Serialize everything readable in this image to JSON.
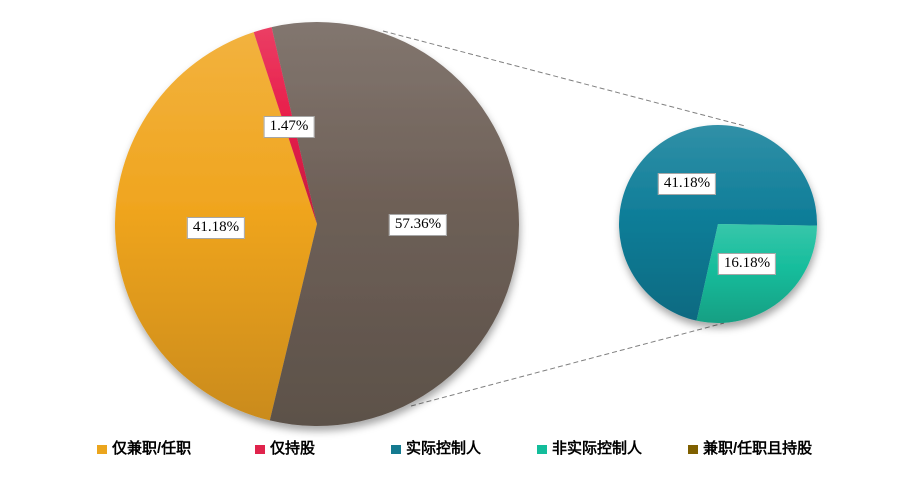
{
  "chart_data": {
    "type": "pie",
    "variant": "pie-of-pie",
    "title": "",
    "legend_position": "bottom",
    "connector_color": "#808080",
    "main_pie": {
      "rotation_deg": 193.5,
      "slices": [
        {
          "name": "仅兼职/任职",
          "value": 41.18,
          "label": "41.18%",
          "color": "#F0A51F"
        },
        {
          "name": "仅持股",
          "value": 1.47,
          "label": "1.47%",
          "color": "#E81F4B"
        },
        {
          "name": "兼职/任职且持股",
          "value": 57.36,
          "label": "57.36%",
          "color": "#6E6057"
        }
      ]
    },
    "secondary_pie": {
      "rotation_deg": 192.5,
      "breakdown_of": "兼职/任职且持股",
      "slices": [
        {
          "name": "实际控制人",
          "value": 41.18,
          "label": "41.18%",
          "color": "#107E99"
        },
        {
          "name": "非实际控制人",
          "value": 16.18,
          "label": "16.18%",
          "color": "#16BD9C"
        }
      ]
    },
    "legend": [
      {
        "label": "仅兼职/任职",
        "color": "#EBA51D"
      },
      {
        "label": "仅持股",
        "color": "#E0244C"
      },
      {
        "label": "实际控制人",
        "color": "#147A90"
      },
      {
        "label": "非实际控制人",
        "color": "#13BD9B"
      },
      {
        "label": "兼职/任职且持股",
        "color": "#7F6000"
      }
    ]
  }
}
